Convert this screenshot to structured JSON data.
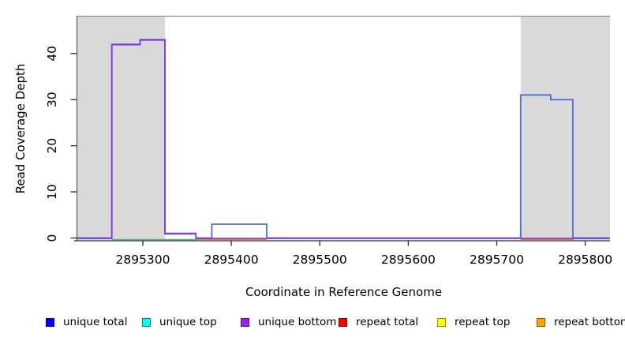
{
  "chart_data": {
    "type": "line",
    "title": "",
    "xlabel": "Coordinate in Reference Genome",
    "ylabel": "Read Coverage Depth",
    "xlim": [
      2895226,
      2895828
    ],
    "ylim": [
      0,
      48
    ],
    "x_ticks": [
      2895300,
      2895400,
      2895500,
      2895600,
      2895700,
      2895800
    ],
    "y_ticks": [
      0,
      10,
      20,
      30,
      40
    ],
    "grid": false,
    "legend_position": "bottom",
    "shaded_regions": [
      {
        "name": "repeat-region-left",
        "x0": 2895226,
        "x1": 2895325,
        "color": "#d9d9d9"
      },
      {
        "name": "repeat-region-right",
        "x0": 2895727,
        "x1": 2895828,
        "color": "#d9d9d9"
      }
    ],
    "series": [
      {
        "name": "unique total",
        "color": "#4472e0",
        "width": 1.8,
        "offset": 0,
        "steps": [
          [
            2895226,
            0
          ],
          [
            2895265,
            0
          ],
          [
            2895265,
            42
          ],
          [
            2895297,
            42
          ],
          [
            2895297,
            43
          ],
          [
            2895325,
            43
          ],
          [
            2895325,
            1
          ],
          [
            2895360,
            1
          ],
          [
            2895360,
            0
          ],
          [
            2895378,
            0
          ],
          [
            2895378,
            3
          ],
          [
            2895440,
            3
          ],
          [
            2895440,
            0
          ],
          [
            2895727,
            0
          ],
          [
            2895727,
            31
          ],
          [
            2895761,
            31
          ],
          [
            2895761,
            30
          ],
          [
            2895786,
            30
          ],
          [
            2895786,
            0
          ],
          [
            2895828,
            0
          ]
        ]
      },
      {
        "name": "unique bottom",
        "color": "#8430e0",
        "width": 1.6,
        "offset": 0.6,
        "steps": [
          [
            2895226,
            0
          ],
          [
            2895265,
            0
          ],
          [
            2895265,
            42
          ],
          [
            2895297,
            42
          ],
          [
            2895297,
            43
          ],
          [
            2895325,
            43
          ],
          [
            2895325,
            1
          ],
          [
            2895360,
            1
          ],
          [
            2895360,
            0
          ],
          [
            2895828,
            0
          ]
        ]
      },
      {
        "name": "green baseline segment",
        "color": "#55bb55",
        "width": 1.4,
        "offset": 2.0,
        "steps": [
          [
            2895265,
            0
          ],
          [
            2895362,
            0
          ]
        ]
      },
      {
        "name": "repeat total left segment",
        "color": "#e04545",
        "width": 1.4,
        "offset": 1.6,
        "steps": [
          [
            2895362,
            0
          ],
          [
            2895440,
            0
          ]
        ]
      },
      {
        "name": "repeat total right segment",
        "color": "#e04545",
        "width": 1.4,
        "offset": 1.6,
        "steps": [
          [
            2895727,
            0
          ],
          [
            2895787,
            0
          ]
        ]
      }
    ]
  },
  "legend": {
    "items": [
      {
        "label": "unique total",
        "color": "#0000ff",
        "border": "#00009a"
      },
      {
        "label": "unique top",
        "color": "#00ffff",
        "border": "#007d7d"
      },
      {
        "label": "unique bottom",
        "color": "#a020f0",
        "border": "#5a1387"
      },
      {
        "label": "repeat total",
        "color": "#ff0000",
        "border": "#8e0000"
      },
      {
        "label": "repeat top",
        "color": "#ffff00",
        "border": "#8e8e00"
      },
      {
        "label": "repeat bottom",
        "color": "#ffa500",
        "border": "#8e5c00"
      }
    ]
  }
}
